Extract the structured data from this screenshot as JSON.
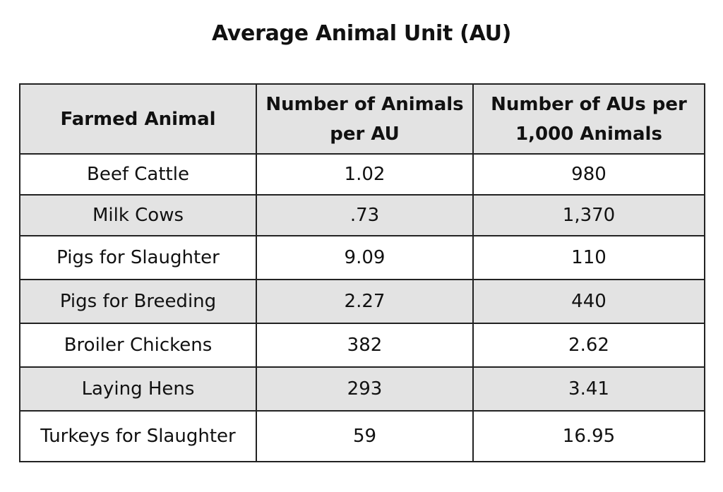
{
  "title": "Average Animal Unit (AU)",
  "table": {
    "headers": [
      "Farmed Animal",
      "Number of Animals per AU",
      "Number of AUs per 1,000 Animals"
    ],
    "rows": [
      [
        "Beef Cattle",
        "1.02",
        "980"
      ],
      [
        "Milk Cows",
        ".73",
        "1,370"
      ],
      [
        "Pigs for Slaughter",
        "9.09",
        "110"
      ],
      [
        "Pigs for Breeding",
        "2.27",
        "440"
      ],
      [
        "Broiler Chickens",
        "382",
        "2.62"
      ],
      [
        "Laying Hens",
        "293",
        "3.41"
      ],
      [
        "Turkeys for Slaughter",
        "59",
        "16.95"
      ]
    ]
  },
  "colors": {
    "header_bg": "#e3e3e3",
    "stripe_bg": "#e3e3e3",
    "border": "#222222",
    "text": "#111111"
  }
}
